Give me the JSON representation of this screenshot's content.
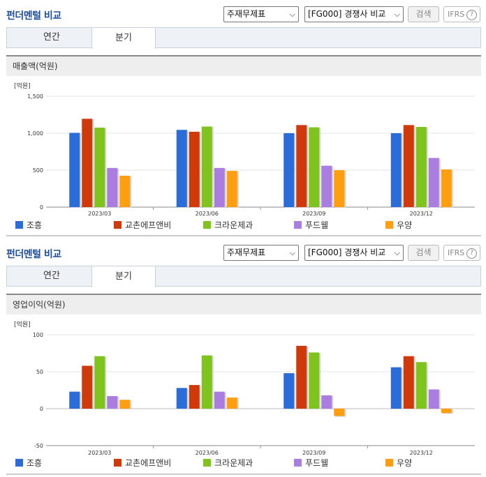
{
  "colors": [
    "#2a6dd9",
    "#d03a0a",
    "#7fc31d",
    "#a97ee0",
    "#ff9e0e"
  ],
  "panels": [
    {
      "title": "펀더멘털 비교",
      "select1": "주재무제표",
      "select2": "[FG000] 경쟁사 비교",
      "search_label": "검색",
      "ifrs_label": "IFRS",
      "tabs": [
        {
          "label": "연간"
        },
        {
          "label": "분기"
        }
      ],
      "active_tab": 1,
      "section_title": "매출액(억원)",
      "chart_data": {
        "type": "bar",
        "ylabel": "[억원]",
        "ylim": [
          0,
          1500
        ],
        "yticks": [
          0,
          500,
          1000,
          1500
        ],
        "ytick_labels": [
          "0",
          "500",
          "1,000",
          "1,500"
        ],
        "categories": [
          "2023/03",
          "2023/06",
          "2023/09",
          "2023/12"
        ],
        "series": [
          {
            "name": "조흥",
            "values": [
              1005,
              1045,
              1000,
              1000
            ]
          },
          {
            "name": "교촌에프앤비",
            "values": [
              1195,
              1020,
              1110,
              1110
            ]
          },
          {
            "name": "크라운제과",
            "values": [
              1075,
              1090,
              1080,
              1085
            ]
          },
          {
            "name": "푸드웰",
            "values": [
              530,
              530,
              560,
              665
            ]
          },
          {
            "name": "우양",
            "values": [
              425,
              490,
              500,
              510
            ]
          }
        ]
      }
    },
    {
      "title": "펀더멘털 비교",
      "select1": "주재무제표",
      "select2": "[FG000] 경쟁사 비교",
      "search_label": "검색",
      "ifrs_label": "IFRS",
      "tabs": [
        {
          "label": "연간"
        },
        {
          "label": "분기"
        }
      ],
      "active_tab": 1,
      "section_title": "영업이익(억원)",
      "chart_data": {
        "type": "bar",
        "ylabel": "[억원]",
        "ylim": [
          -50,
          100
        ],
        "yticks": [
          -50,
          0,
          50,
          100
        ],
        "ytick_labels": [
          "-50",
          "0",
          "50",
          "100"
        ],
        "categories": [
          "2023/03",
          "2023/06",
          "2023/09",
          "2023/12"
        ],
        "series": [
          {
            "name": "조흥",
            "values": [
              23,
              28,
              48,
              56
            ]
          },
          {
            "name": "교촌에프앤비",
            "values": [
              58,
              32,
              85,
              71
            ]
          },
          {
            "name": "크라운제과",
            "values": [
              71,
              72,
              76,
              63
            ]
          },
          {
            "name": "푸드웰",
            "values": [
              17,
              23,
              18,
              26
            ]
          },
          {
            "name": "우양",
            "values": [
              12,
              15,
              -10,
              -6
            ]
          }
        ]
      }
    }
  ]
}
